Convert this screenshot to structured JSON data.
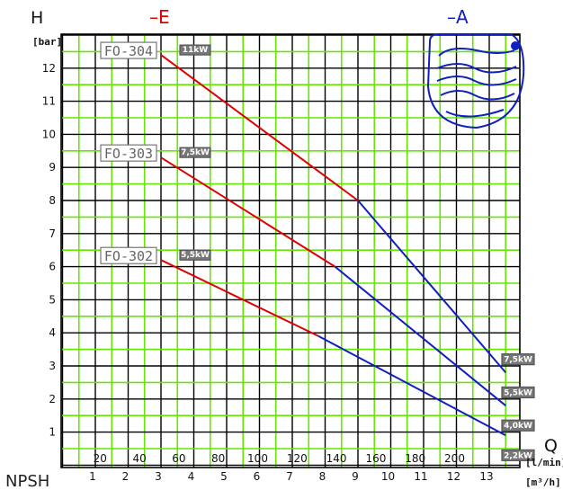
{
  "chart_data": {
    "type": "line",
    "y_axis": {
      "symbol": "H",
      "unit": "[bar]",
      "range": [
        0,
        13
      ],
      "ticks": [
        1,
        2,
        3,
        4,
        5,
        6,
        7,
        8,
        9,
        10,
        11,
        12
      ]
    },
    "x_axis": {
      "symbol": "Q",
      "unit_primary": "[m³/h]",
      "unit_secondary": "[l/min]",
      "range": [
        0,
        14
      ],
      "ticks_m3h": [
        1,
        2,
        3,
        4,
        5,
        6,
        7,
        8,
        9,
        10,
        11,
        12,
        13
      ],
      "ticks_lmin": [
        20,
        40,
        60,
        80,
        100,
        120,
        140,
        160,
        180,
        200
      ]
    },
    "grid": true,
    "legend": {
      "E_label": "–E",
      "A_label": "–A",
      "E_color": "#e00000",
      "A_color": "#1020c0"
    },
    "npsh_label": "NPSH",
    "grid_color": "#66e600",
    "series": [
      {
        "name": "FO-304",
        "motor_E": "11kW",
        "motor_A": "7,5kW",
        "E_points": [
          [
            3,
            12.4
          ],
          [
            9,
            8.0
          ]
        ],
        "A_points": [
          [
            9,
            8.0
          ],
          [
            13.5,
            2.8
          ]
        ]
      },
      {
        "name": "FO-303",
        "motor_E": "7,5kW",
        "motor_A": "5,5kW",
        "E_points": [
          [
            3,
            9.3
          ],
          [
            8.3,
            6.0
          ]
        ],
        "A_points": [
          [
            8.3,
            6.0
          ],
          [
            13.5,
            1.8
          ]
        ]
      },
      {
        "name": "FO-302",
        "motor_E": "5,5kW",
        "motor_A": "4,0kW",
        "E_points": [
          [
            3,
            6.2
          ],
          [
            7.8,
            3.9
          ]
        ],
        "A_points": [
          [
            7.8,
            3.9
          ],
          [
            13.5,
            0.9
          ]
        ]
      }
    ],
    "extra_motor_label": "2,2kW"
  }
}
